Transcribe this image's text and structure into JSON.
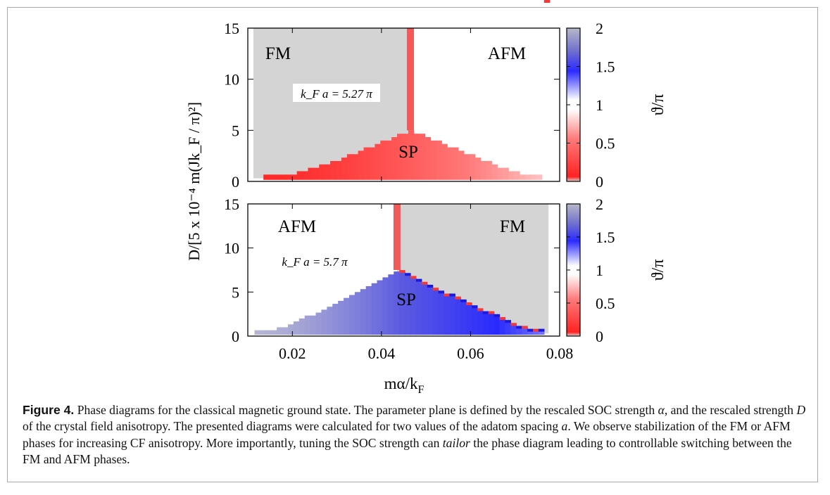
{
  "chart_data": [
    {
      "type": "heatmap",
      "annotation": "k_F a = 5.27 π",
      "region_labels": [
        "FM",
        "AFM",
        "SP"
      ],
      "xlim": [
        0.01,
        0.08
      ],
      "ylim": [
        0,
        15
      ],
      "y_ticks": [
        "0",
        "5",
        "10",
        "15"
      ],
      "boundary_x": 0.0465,
      "left_phase": "FM",
      "right_phase": "AFM",
      "sp_region": {
        "start_x": 0.0135,
        "end_x": 0.0765,
        "peak_x": 0.0465,
        "peak_y": 5.0,
        "theta_left": 0.05,
        "theta_right": 0.75
      }
    },
    {
      "type": "heatmap",
      "annotation": "k_F a = 5.7 π",
      "region_labels": [
        "AFM",
        "FM",
        "SP"
      ],
      "xlim": [
        0.01,
        0.08
      ],
      "ylim": [
        0,
        15
      ],
      "x_ticks": [
        "0.02",
        "0.04",
        "0.06",
        "0.08"
      ],
      "y_ticks": [
        "0",
        "5",
        "10",
        "15"
      ],
      "boundary_x": 0.0435,
      "left_phase": "AFM",
      "right_phase": "FM",
      "sp_region": {
        "start_x": 0.0115,
        "end_x": 0.077,
        "peak_x": 0.0435,
        "peak_y": 7.5,
        "theta_left": 1.95,
        "theta_right": 1.3
      }
    }
  ],
  "axes": {
    "xlabel": "mα/k",
    "xlabel_sub": "F",
    "ylabel": "D/[5 x 10⁻⁴ m(Jk_F / π)²]"
  },
  "colorbar": {
    "label": "ϑ/π",
    "ticks": [
      "0",
      "0.5",
      "1",
      "1.5",
      "2"
    ],
    "range": [
      0,
      2
    ]
  },
  "colors": {
    "FM_gray": "#d4d4d4",
    "AFM_white": "#ffffff",
    "boundary_red": "#f25a5a"
  },
  "caption": {
    "label": "Figure 4.",
    "t1": " Phase diagrams for the classical magnetic ground state. The parameter plane is defined by the rescaled SOC strength ",
    "alpha": "α",
    "t2": ", and the rescaled strength ",
    "D": "D",
    "t3": " of the crystal field anisotropy. The presented diagrams were calculated for two values of the adatom spacing ",
    "a": "a",
    "t4": ". We observe stabilization of the FM or AFM phases for increasing CF anisotropy. More importantly, tuning the SOC strength can ",
    "tailor": "tailor",
    "t5": " the phase diagram leading to controllable switching between the FM and AFM phases."
  }
}
